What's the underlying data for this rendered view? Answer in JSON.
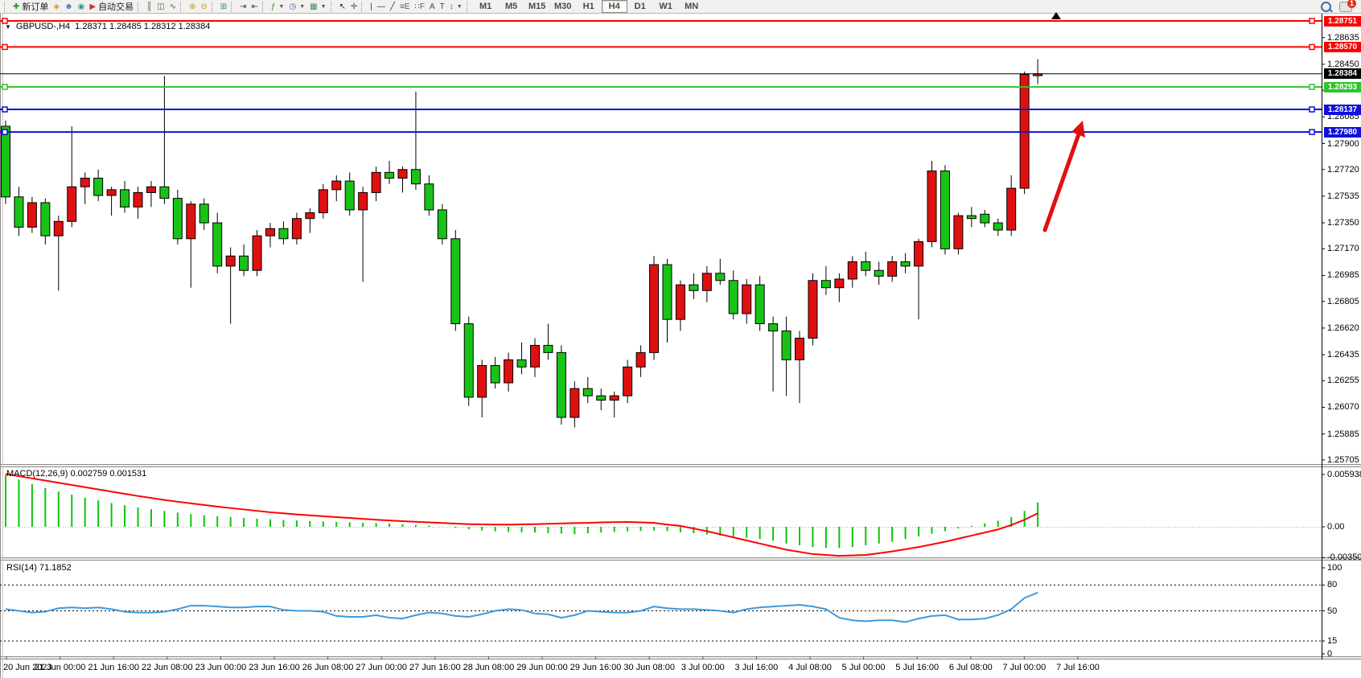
{
  "toolbar": {
    "buttons": [
      {
        "name": "new-order-button",
        "icon": "new-order-icon",
        "glyph": "✚",
        "color": "#1f9e1f",
        "label": "新订单"
      },
      {
        "name": "styler-button",
        "icon": "paint-bucket-icon",
        "glyph": "◈",
        "color": "#c89b2a"
      },
      {
        "name": "profile-button",
        "icon": "profile-icon",
        "glyph": "☻",
        "color": "#4a7ab5"
      },
      {
        "name": "signals-button",
        "icon": "signal-icon",
        "glyph": "◉",
        "color": "#2e9e93"
      },
      {
        "name": "auto-trading-button",
        "icon": "auto-trading-icon",
        "glyph": "▶",
        "color": "#c03a2b",
        "label": "自动交易"
      },
      {
        "name": "bar-chart-button",
        "icon": "bar-chart-icon",
        "glyph": "║",
        "color": "#3a6e3a"
      },
      {
        "name": "candlestick-button",
        "icon": "candlestick-icon",
        "glyph": "◫",
        "color": "#2a6e2a"
      },
      {
        "name": "line-chart-button",
        "icon": "line-chart-icon",
        "glyph": "∿",
        "color": "#2a6e2a"
      },
      {
        "name": "zoom-in-button",
        "icon": "zoom-in-icon",
        "glyph": "⊕",
        "color": "#b59a2a"
      },
      {
        "name": "zoom-out-button",
        "icon": "zoom-out-icon",
        "glyph": "⊖",
        "color": "#b59a2a"
      },
      {
        "name": "tile-windows-button",
        "icon": "tile-windows-icon",
        "glyph": "⊞",
        "color": "#2e8f8a"
      },
      {
        "name": "auto-scroll-button",
        "icon": "auto-scroll-icon",
        "glyph": "⇥",
        "color": "#444444"
      },
      {
        "name": "chart-shift-button",
        "icon": "chart-shift-icon",
        "glyph": "⇤",
        "color": "#444444"
      },
      {
        "name": "indicators-button",
        "icon": "indicators-icon",
        "glyph": "ƒ",
        "color": "#1f9e1f",
        "dropdown": true
      },
      {
        "name": "periods-button",
        "icon": "clock-icon",
        "glyph": "◷",
        "color": "#3a5fa5",
        "dropdown": true
      },
      {
        "name": "templates-button",
        "icon": "template-icon",
        "glyph": "▦",
        "color": "#3a8f5f",
        "dropdown": true
      },
      {
        "name": "cursor-button",
        "icon": "cursor-icon",
        "glyph": "↖",
        "color": "#222222"
      },
      {
        "name": "crosshair-button",
        "icon": "crosshair-icon",
        "glyph": "✛",
        "color": "#555555"
      },
      {
        "name": "vertical-line-button",
        "icon": "vertical-line-icon",
        "glyph": "|",
        "color": "#333333"
      },
      {
        "name": "horizontal-line-button",
        "icon": "horizontal-line-icon",
        "glyph": "—",
        "color": "#333333"
      },
      {
        "name": "trendline-button",
        "icon": "trendline-icon",
        "glyph": "╱",
        "color": "#333333"
      },
      {
        "name": "fibo-retracement-button",
        "icon": "fibo-retracement-icon",
        "glyph": "≡E",
        "color": "#555555"
      },
      {
        "name": "fibo-fan-button",
        "icon": "fibo-fan-icon",
        "glyph": "∷F",
        "color": "#555555"
      },
      {
        "name": "text-button",
        "icon": "text-icon",
        "glyph": "A",
        "color": "#444444"
      },
      {
        "name": "text-label-button",
        "icon": "text-label-icon",
        "glyph": "T",
        "color": "#444444"
      },
      {
        "name": "arrow-objects-button",
        "icon": "arrow-objects-icon",
        "glyph": "↕",
        "color": "#7a4aa5",
        "dropdown": true
      }
    ],
    "separators_after": [
      4,
      7,
      9,
      10,
      12,
      15,
      17,
      25
    ],
    "timeframes": [
      "M1",
      "M5",
      "M15",
      "M30",
      "H1",
      "H4",
      "D1",
      "W1",
      "MN"
    ],
    "active_timeframe": "H4",
    "chat_badge": "1"
  },
  "chart": {
    "title": "GBPUSD-,H4",
    "ohlc_text": "1.28371 1.28485 1.28312 1.28384",
    "dropdown_glyph": "▼"
  },
  "chart_data": {
    "type": "candlestick",
    "symbol": "GBPUSD",
    "timeframe": "H4",
    "current": {
      "open": 1.28371,
      "high": 1.28485,
      "low": 1.28312,
      "close": 1.28384
    },
    "y_ticks": [
      "1.28635",
      "1.28450",
      "1.28270",
      "1.28085",
      "1.27900",
      "1.27720",
      "1.27535",
      "1.27350",
      "1.27170",
      "1.26985",
      "1.26805",
      "1.26620",
      "1.26435",
      "1.26255",
      "1.26070",
      "1.25885",
      "1.25705"
    ],
    "x_labels": [
      "20 Jun 2023",
      "21 Jun 00:00",
      "21 Jun 16:00",
      "22 Jun 08:00",
      "23 Jun 00:00",
      "23 Jun 16:00",
      "26 Jun 08:00",
      "27 Jun 00:00",
      "27 Jun 16:00",
      "28 Jun 08:00",
      "29 Jun 00:00",
      "29 Jun 16:00",
      "30 Jun 08:00",
      "3 Jul 00:00",
      "3 Jul 16:00",
      "4 Jul 08:00",
      "5 Jul 00:00",
      "5 Jul 16:00",
      "6 Jul 08:00",
      "7 Jul 00:00",
      "7 Jul 16:00"
    ],
    "hlines": [
      {
        "value": "1.28751",
        "price": 1.28751,
        "color": "#ff0000"
      },
      {
        "value": "1.28570",
        "price": 1.2857,
        "color": "#ff0000"
      },
      {
        "value": "1.28384",
        "price": 1.28384,
        "color": "#000000",
        "is_price_line": true
      },
      {
        "value": "1.28293",
        "price": 1.28293,
        "color": "#2fc42f"
      },
      {
        "value": "1.28137",
        "price": 1.28137,
        "color": "#0f10d8"
      },
      {
        "value": "1.27980",
        "price": 1.2798,
        "color": "#0f10d8"
      }
    ],
    "ohlc": [
      [
        1.2802,
        1.2806,
        1.2748,
        1.2753
      ],
      [
        1.2753,
        1.276,
        1.2726,
        1.2732
      ],
      [
        1.2732,
        1.2753,
        1.2728,
        1.2749
      ],
      [
        1.2749,
        1.2752,
        1.272,
        1.2726
      ],
      [
        1.2726,
        1.274,
        1.2688,
        1.2736
      ],
      [
        1.2736,
        1.2802,
        1.2732,
        1.276
      ],
      [
        1.276,
        1.277,
        1.2748,
        1.2766
      ],
      [
        1.2766,
        1.2772,
        1.275,
        1.2754
      ],
      [
        1.2754,
        1.276,
        1.274,
        1.2758
      ],
      [
        1.2758,
        1.2764,
        1.2742,
        1.2746
      ],
      [
        1.2746,
        1.276,
        1.2738,
        1.2756
      ],
      [
        1.2756,
        1.2764,
        1.2746,
        1.276
      ],
      [
        1.276,
        1.2837,
        1.2748,
        1.2752
      ],
      [
        1.2752,
        1.2758,
        1.272,
        1.2724
      ],
      [
        1.2724,
        1.275,
        1.269,
        1.2748
      ],
      [
        1.2748,
        1.2752,
        1.273,
        1.2735
      ],
      [
        1.2735,
        1.2742,
        1.27,
        1.2705
      ],
      [
        1.2705,
        1.2718,
        1.2665,
        1.2712
      ],
      [
        1.2712,
        1.272,
        1.2698,
        1.2702
      ],
      [
        1.2702,
        1.273,
        1.2698,
        1.2726
      ],
      [
        1.2726,
        1.2735,
        1.2718,
        1.2731
      ],
      [
        1.2731,
        1.2736,
        1.272,
        1.2724
      ],
      [
        1.2724,
        1.2742,
        1.272,
        1.2738
      ],
      [
        1.2738,
        1.2745,
        1.2728,
        1.2742
      ],
      [
        1.2742,
        1.2762,
        1.2738,
        1.2758
      ],
      [
        1.2758,
        1.2768,
        1.275,
        1.2764
      ],
      [
        1.2764,
        1.277,
        1.274,
        1.2744
      ],
      [
        1.2744,
        1.276,
        1.2694,
        1.2756
      ],
      [
        1.2756,
        1.2774,
        1.275,
        1.277
      ],
      [
        1.277,
        1.2778,
        1.2762,
        1.2766
      ],
      [
        1.2766,
        1.2774,
        1.2756,
        1.2772
      ],
      [
        1.2772,
        1.2826,
        1.2758,
        1.2762
      ],
      [
        1.2762,
        1.2768,
        1.274,
        1.2744
      ],
      [
        1.2744,
        1.2748,
        1.272,
        1.2724
      ],
      [
        1.2724,
        1.273,
        1.266,
        1.2665
      ],
      [
        1.2665,
        1.267,
        1.2608,
        1.2614
      ],
      [
        1.2614,
        1.264,
        1.26,
        1.2636
      ],
      [
        1.2636,
        1.2642,
        1.262,
        1.2624
      ],
      [
        1.2624,
        1.2645,
        1.2618,
        1.264
      ],
      [
        1.264,
        1.2652,
        1.263,
        1.2635
      ],
      [
        1.2635,
        1.2655,
        1.2628,
        1.265
      ],
      [
        1.265,
        1.2665,
        1.264,
        1.2645
      ],
      [
        1.2645,
        1.265,
        1.2595,
        1.26
      ],
      [
        1.26,
        1.2625,
        1.2593,
        1.262
      ],
      [
        1.262,
        1.2628,
        1.261,
        1.2615
      ],
      [
        1.2615,
        1.262,
        1.2605,
        1.2612
      ],
      [
        1.2612,
        1.2618,
        1.26,
        1.2615
      ],
      [
        1.2615,
        1.264,
        1.261,
        1.2635
      ],
      [
        1.2635,
        1.265,
        1.2628,
        1.2645
      ],
      [
        1.2645,
        1.2712,
        1.264,
        1.2706
      ],
      [
        1.2706,
        1.271,
        1.2652,
        1.2668
      ],
      [
        1.2668,
        1.2695,
        1.266,
        1.2692
      ],
      [
        1.2692,
        1.27,
        1.2682,
        1.2688
      ],
      [
        1.2688,
        1.2705,
        1.268,
        1.27
      ],
      [
        1.27,
        1.271,
        1.2692,
        1.2695
      ],
      [
        1.2695,
        1.2702,
        1.2668,
        1.2672
      ],
      [
        1.2672,
        1.2696,
        1.2665,
        1.2692
      ],
      [
        1.2692,
        1.2698,
        1.266,
        1.2665
      ],
      [
        1.2665,
        1.267,
        1.2618,
        1.266
      ],
      [
        1.266,
        1.267,
        1.2615,
        1.264
      ],
      [
        1.264,
        1.266,
        1.261,
        1.2655
      ],
      [
        1.2655,
        1.27,
        1.265,
        1.2695
      ],
      [
        1.2695,
        1.2705,
        1.2685,
        1.269
      ],
      [
        1.269,
        1.27,
        1.268,
        1.2696
      ],
      [
        1.2696,
        1.2712,
        1.269,
        1.2708
      ],
      [
        1.2708,
        1.2715,
        1.2698,
        1.2702
      ],
      [
        1.2702,
        1.2708,
        1.2692,
        1.2698
      ],
      [
        1.2698,
        1.2712,
        1.2694,
        1.2708
      ],
      [
        1.2708,
        1.2714,
        1.27,
        1.2705
      ],
      [
        1.2705,
        1.2724,
        1.2668,
        1.2722
      ],
      [
        1.2722,
        1.2778,
        1.2718,
        1.2771
      ],
      [
        1.2771,
        1.2775,
        1.2713,
        1.2717
      ],
      [
        1.2717,
        1.2742,
        1.2713,
        1.274
      ],
      [
        1.274,
        1.2746,
        1.2732,
        1.2738
      ],
      [
        1.2741,
        1.2744,
        1.2732,
        1.2735
      ],
      [
        1.2735,
        1.2738,
        1.2726,
        1.273
      ],
      [
        1.273,
        1.2768,
        1.2726,
        1.2759
      ],
      [
        1.2759,
        1.284,
        1.2755,
        1.2838
      ],
      [
        1.28371,
        1.28485,
        1.28312,
        1.28384
      ]
    ],
    "macd": {
      "label": "MACD(12,26,9) 0.002759 0.001531",
      "y_ticks": [
        "0.005938",
        "0.00",
        "-0.003502"
      ],
      "histogram": [
        0.0059,
        0.00535,
        0.00485,
        0.0044,
        0.004,
        0.00365,
        0.0033,
        0.003,
        0.0027,
        0.00245,
        0.0022,
        0.002,
        0.0018,
        0.00162,
        0.00145,
        0.0013,
        0.0012,
        0.0011,
        0.001,
        0.00092,
        0.00085,
        0.00078,
        0.00072,
        0.00066,
        0.0006,
        0.00055,
        0.0005,
        0.00046,
        0.00042,
        0.00038,
        0.0003,
        0.00022,
        0.00012,
        2e-05,
        -0.00012,
        -0.00028,
        -0.00042,
        -0.00052,
        -0.00058,
        -0.00062,
        -0.00066,
        -0.00072,
        -0.00078,
        -0.00085,
        -0.00075,
        -0.00065,
        -0.00058,
        -0.00052,
        -0.00048,
        -0.00042,
        -0.0005,
        -0.00062,
        -0.00075,
        -0.00088,
        -0.001,
        -0.0011,
        -0.00125,
        -0.0014,
        -0.0016,
        -0.0019,
        -0.0021,
        -0.0023,
        -0.0024,
        -0.0024,
        -0.0023,
        -0.0021,
        -0.0019,
        -0.0017,
        -0.0014,
        -0.0011,
        -0.0008,
        -0.0005,
        -0.0002,
        0.0001,
        0.0004,
        0.0007,
        0.0011,
        0.0018,
        0.00276
      ],
      "signal": [
        0.006,
        0.00575,
        0.0055,
        0.00525,
        0.005,
        0.00475,
        0.0045,
        0.00425,
        0.004,
        0.00375,
        0.0035,
        0.00328,
        0.00305,
        0.00285,
        0.00266,
        0.00248,
        0.0023,
        0.00213,
        0.00197,
        0.00181,
        0.00165,
        0.00153,
        0.00141,
        0.0013,
        0.0012,
        0.0011,
        0.001,
        0.0009,
        0.0008,
        0.00072,
        0.00064,
        0.00057,
        0.0005,
        0.00043,
        0.00036,
        0.0003,
        0.00027,
        0.00025,
        0.00025,
        0.00027,
        0.0003,
        0.00034,
        0.00038,
        0.00042,
        0.00045,
        0.0005,
        0.00053,
        0.00055,
        0.0005,
        0.00045,
        0.00025,
        0.0001,
        -0.0002,
        -0.0005,
        -0.00085,
        -0.0012,
        -0.00155,
        -0.0019,
        -0.00225,
        -0.0026,
        -0.00285,
        -0.0031,
        -0.0032,
        -0.0033,
        -0.00325,
        -0.0032,
        -0.003,
        -0.0028,
        -0.00255,
        -0.0023,
        -0.002,
        -0.0017,
        -0.00135,
        -0.001,
        -0.00065,
        -0.0003,
        0.0002,
        0.0008,
        0.00153
      ]
    },
    "rsi": {
      "label": "RSI(14) 71.1852",
      "current": 71.1852,
      "levels": [
        80,
        50,
        15
      ],
      "y_ticks": [
        "100",
        "80",
        "50",
        "15",
        "0"
      ],
      "values": [
        52,
        50,
        48,
        49,
        53,
        54,
        53,
        54,
        52,
        49,
        48,
        48,
        49,
        52,
        56,
        56,
        55,
        54,
        54,
        55,
        55,
        51,
        50,
        50,
        49,
        44,
        43,
        43,
        45,
        42,
        41,
        45,
        48,
        47,
        44,
        43,
        46,
        50,
        52,
        51,
        47,
        46,
        42,
        45,
        50,
        49,
        48,
        48,
        50,
        55,
        53,
        52,
        52,
        51,
        50,
        48,
        52,
        54,
        55,
        56,
        57,
        55,
        52,
        42,
        39,
        38,
        39,
        39,
        37,
        41,
        44,
        45,
        40,
        40,
        41,
        45,
        52,
        65,
        71.19
      ]
    },
    "annotations": [
      {
        "name": "up-arrow",
        "color": "#e01010"
      }
    ]
  },
  "colors": {
    "candle_up": "#e01010",
    "candle_down": "#17c317",
    "macd_hist": "#0ac60a",
    "macd_signal": "#ff0000",
    "rsi_line": "#3e9ade",
    "axis": "#000000"
  }
}
